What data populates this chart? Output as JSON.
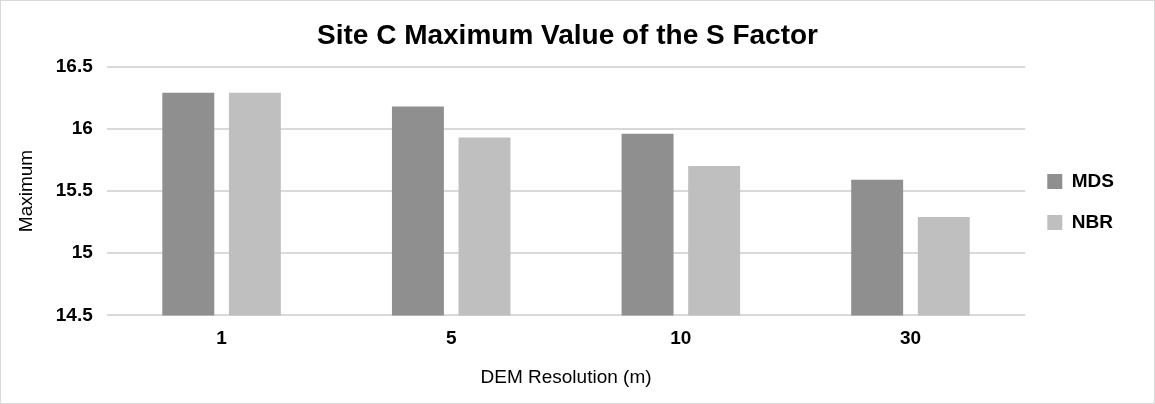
{
  "chart_data": {
    "type": "bar",
    "title": "Site C Maximum Value of the S Factor",
    "xlabel": "DEM Resolution (m)",
    "ylabel": "Maximum",
    "categories": [
      "1",
      "5",
      "10",
      "30"
    ],
    "series": [
      {
        "name": "MDS",
        "color": "#8f8f8f",
        "values": [
          16.29,
          16.18,
          15.96,
          15.59
        ]
      },
      {
        "name": "NBR",
        "color": "#bfbfbf",
        "values": [
          16.29,
          15.93,
          15.7,
          15.29
        ]
      }
    ],
    "ylim": [
      14.5,
      16.5
    ],
    "yticks": [
      14.5,
      15,
      15.5,
      16,
      16.5
    ],
    "grid": "y",
    "legend": "right"
  }
}
